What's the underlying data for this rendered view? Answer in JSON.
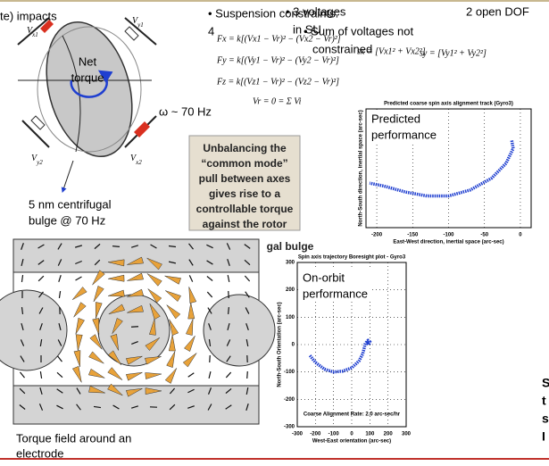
{
  "sphere": {
    "impacts": "te) impacts",
    "electrodes": [
      {
        "v": "V",
        "sub": "x1"
      },
      {
        "v": "V",
        "sub": "y1"
      },
      {
        "v": "V",
        "sub": "y2"
      },
      {
        "v": "V",
        "sub": "x2"
      }
    ],
    "net_torque": [
      "Net",
      "torque"
    ],
    "omega": "ω ~ 70 Hz",
    "bulge": [
      "5 nm centrifugal",
      "bulge @ 70 Hz"
    ]
  },
  "constraints": {
    "title": "• Suspension constraints:",
    "num": "4",
    "voltages": "• 3 voltages",
    "in_su": "in SU",
    "sum": "• Sum of voltages not",
    "constrained": "constrained",
    "open_dof": "2 open DOF"
  },
  "equations": [
    "Fx = k[(Vx1 − Vr)² − (Vx2 − Vr)²]",
    "Fy = k[(Vy1 − Vr)² − (Vy2 − Vr)²]",
    "Fz = k[(Vz1 − Vr)² − (Vz2 − Vr)²]",
    "Vr = 0 = Σ Vi",
    "sx = [Vx1² + Vx2²]",
    "sy = [Vy1² + Vy2²]"
  ],
  "callout": {
    "lines": [
      "Unbalancing the",
      "“common mode”",
      "pull between axes",
      "gives rise to a",
      "controllable torque",
      "against the rotor"
    ],
    "tail": "gal bulge"
  },
  "torque_field": {
    "caption": [
      "Torque field around an",
      "electrode"
    ]
  },
  "plots": [
    {
      "title": "Predicted coarse spin axis alignment track (Gyro3)",
      "label": [
        "Predicted",
        "performance"
      ],
      "xlabel": "East-West direction, inertial space (arc-sec)",
      "ylabel": "North-South direction, inertial space (arc-sec)",
      "xlim": [
        -215,
        15
      ],
      "ylim": [
        -100,
        20
      ],
      "xticks": [
        -200,
        -150,
        -100,
        -50,
        0
      ],
      "x": [
        -12,
        -10,
        -20,
        -40,
        -70,
        -100,
        -130,
        -160,
        -190,
        -210
      ],
      "y": [
        -12,
        -20,
        -35,
        -50,
        -62,
        -68,
        -68,
        -64,
        -58,
        -55
      ]
    },
    {
      "title": "Spin axis trajectory Boresight plot - Gyro3",
      "label": [
        "On-orbit",
        "performance"
      ],
      "xlabel": "West-East orientation (arc-sec)",
      "ylabel": "North-South Orientation (arc-sec)",
      "note": "Coarse Alignment Rate:  2.0 arc-sec/hr",
      "xlim": [
        -300,
        300
      ],
      "ylim": [
        -300,
        300
      ],
      "xticks": [
        -300,
        -200,
        -100,
        0,
        100,
        200,
        300
      ],
      "yticks": [
        -300,
        -200,
        -100,
        0,
        100,
        200,
        300
      ],
      "x": [
        -230,
        -200,
        -150,
        -100,
        -50,
        0,
        40,
        60,
        70,
        75,
        90,
        100,
        95,
        85,
        90
      ],
      "y": [
        -40,
        -65,
        -90,
        -100,
        -97,
        -85,
        -60,
        -35,
        -10,
        5,
        15,
        10,
        0,
        5,
        15
      ]
    }
  ],
  "edge_text": [
    "S",
    "t",
    "s",
    "I"
  ]
}
